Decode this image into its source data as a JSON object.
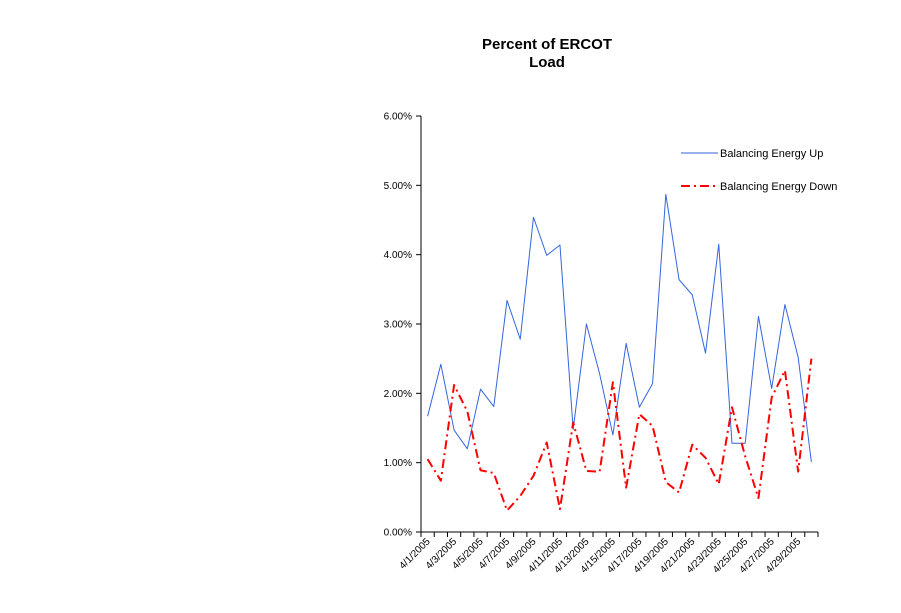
{
  "chart_data": {
    "type": "line",
    "title_line1": "Percent of ERCOT",
    "title_line2": "Load",
    "xlabel": "",
    "ylabel": "",
    "ylim": [
      0,
      6
    ],
    "y_ticks": [
      "0.00%",
      "1.00%",
      "2.00%",
      "3.00%",
      "4.00%",
      "5.00%",
      "6.00%"
    ],
    "x": [
      "4/1/2005",
      "4/2/2005",
      "4/3/2005",
      "4/4/2005",
      "4/5/2005",
      "4/6/2005",
      "4/7/2005",
      "4/8/2005",
      "4/9/2005",
      "4/10/2005",
      "4/11/2005",
      "4/12/2005",
      "4/13/2005",
      "4/14/2005",
      "4/15/2005",
      "4/16/2005",
      "4/17/2005",
      "4/18/2005",
      "4/19/2005",
      "4/20/2005",
      "4/21/2005",
      "4/22/2005",
      "4/23/2005",
      "4/24/2005",
      "4/25/2005",
      "4/26/2005",
      "4/27/2005",
      "4/28/2005",
      "4/29/2005",
      "4/30/2005"
    ],
    "x_tick_labels": [
      "4/1/2005",
      "4/3/2005",
      "4/5/2005",
      "4/7/2005",
      "4/9/2005",
      "4/11/2005",
      "4/13/2005",
      "4/15/2005",
      "4/17/2005",
      "4/19/2005",
      "4/21/2005",
      "4/23/2005",
      "4/25/2005",
      "4/27/2005",
      "4/29/2005"
    ],
    "legend_position": "top-right",
    "grid": false,
    "series": [
      {
        "name": "Balancing Energy Up",
        "color": "#3366dd",
        "style": "solid",
        "values": [
          1.67,
          2.42,
          1.47,
          1.2,
          2.06,
          1.81,
          3.34,
          2.78,
          4.54,
          3.99,
          4.14,
          1.48,
          3.0,
          2.28,
          1.4,
          2.72,
          1.8,
          2.14,
          4.87,
          3.64,
          3.42,
          2.58,
          4.15,
          1.28,
          1.28,
          3.11,
          2.07,
          3.28,
          2.52,
          1.01
        ]
      },
      {
        "name": "Balancing Energy Down",
        "color": "#ff0000",
        "style": "dash-dot",
        "values": [
          1.05,
          0.74,
          2.12,
          1.74,
          0.89,
          0.85,
          0.31,
          0.52,
          0.81,
          1.29,
          0.33,
          1.58,
          0.88,
          0.87,
          2.16,
          0.64,
          1.7,
          1.53,
          0.72,
          0.57,
          1.26,
          1.07,
          0.69,
          1.8,
          1.09,
          0.49,
          1.94,
          2.33,
          0.87,
          2.5
        ]
      }
    ]
  }
}
